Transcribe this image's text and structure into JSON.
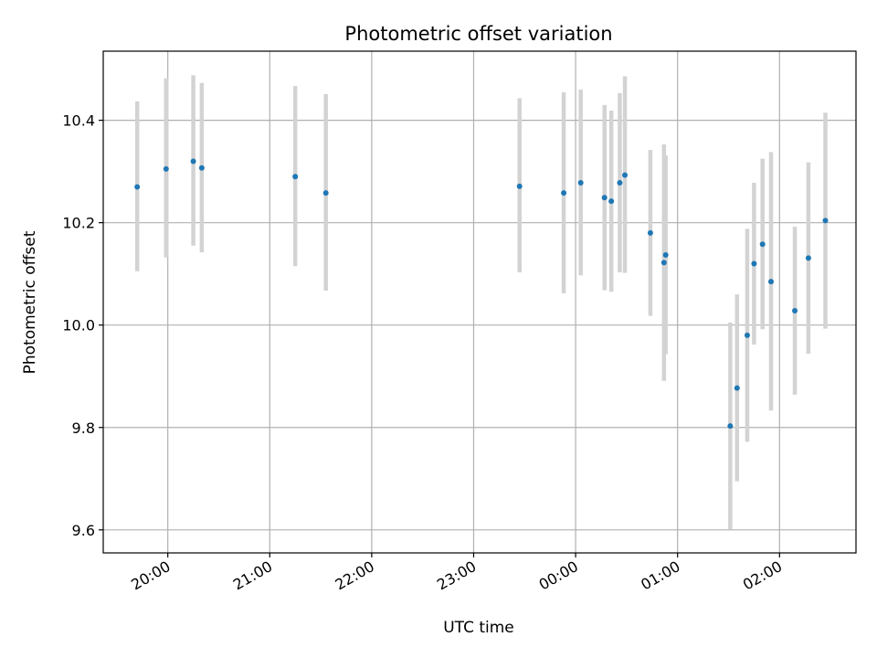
{
  "chart_data": {
    "type": "scatter",
    "title": "Photometric offset variation",
    "xlabel": "UTC time",
    "ylabel": "Photometric offset",
    "x_axis": {
      "kind": "time",
      "range": [
        "19:22",
        "02:45"
      ],
      "ticks": [
        "20:00",
        "21:00",
        "22:00",
        "23:00",
        "00:00",
        "01:00",
        "02:00"
      ]
    },
    "y_axis": {
      "range": [
        9.555,
        10.535
      ],
      "ticks": [
        "9.6",
        "9.8",
        "10.0",
        "10.2",
        "10.4"
      ]
    },
    "grid": true,
    "colors": {
      "point": "#1f77b4",
      "errorbar": "#d3d3d3",
      "grid": "#b0b0b0"
    },
    "points": [
      {
        "time": "19:42",
        "y": 10.27,
        "low": 10.105,
        "high": 10.437
      },
      {
        "time": "19:59",
        "y": 10.305,
        "low": 10.132,
        "high": 10.482
      },
      {
        "time": "20:15",
        "y": 10.32,
        "low": 10.155,
        "high": 10.488
      },
      {
        "time": "20:20",
        "y": 10.307,
        "low": 10.142,
        "high": 10.473
      },
      {
        "time": "21:15",
        "y": 10.29,
        "low": 10.115,
        "high": 10.467
      },
      {
        "time": "21:33",
        "y": 10.258,
        "low": 10.067,
        "high": 10.451
      },
      {
        "time": "23:27",
        "y": 10.271,
        "low": 10.103,
        "high": 10.443
      },
      {
        "time": "23:53",
        "y": 10.258,
        "low": 10.062,
        "high": 10.455
      },
      {
        "time": "00:03",
        "y": 10.278,
        "low": 10.097,
        "high": 10.46
      },
      {
        "time": "00:17",
        "y": 10.249,
        "low": 10.068,
        "high": 10.43
      },
      {
        "time": "00:21",
        "y": 10.242,
        "low": 10.065,
        "high": 10.419
      },
      {
        "time": "00:26",
        "y": 10.278,
        "low": 10.103,
        "high": 10.453
      },
      {
        "time": "00:29",
        "y": 10.293,
        "low": 10.102,
        "high": 10.486
      },
      {
        "time": "00:44",
        "y": 10.18,
        "low": 10.018,
        "high": 10.342
      },
      {
        "time": "00:52",
        "y": 10.122,
        "low": 9.891,
        "high": 10.353
      },
      {
        "time": "00:53",
        "y": 10.137,
        "low": 9.943,
        "high": 10.331
      },
      {
        "time": "01:31",
        "y": 9.803,
        "low": 9.601,
        "high": 10.005
      },
      {
        "time": "01:35",
        "y": 9.877,
        "low": 9.695,
        "high": 10.06
      },
      {
        "time": "01:41",
        "y": 9.98,
        "low": 9.772,
        "high": 10.188
      },
      {
        "time": "01:45",
        "y": 10.12,
        "low": 9.962,
        "high": 10.278
      },
      {
        "time": "01:50",
        "y": 10.158,
        "low": 9.992,
        "high": 10.325
      },
      {
        "time": "01:55",
        "y": 10.085,
        "low": 9.833,
        "high": 10.338
      },
      {
        "time": "02:09",
        "y": 10.028,
        "low": 9.864,
        "high": 10.192
      },
      {
        "time": "02:17",
        "y": 10.131,
        "low": 9.944,
        "high": 10.318
      },
      {
        "time": "02:27",
        "y": 10.204,
        "low": 9.993,
        "high": 10.415
      }
    ]
  }
}
